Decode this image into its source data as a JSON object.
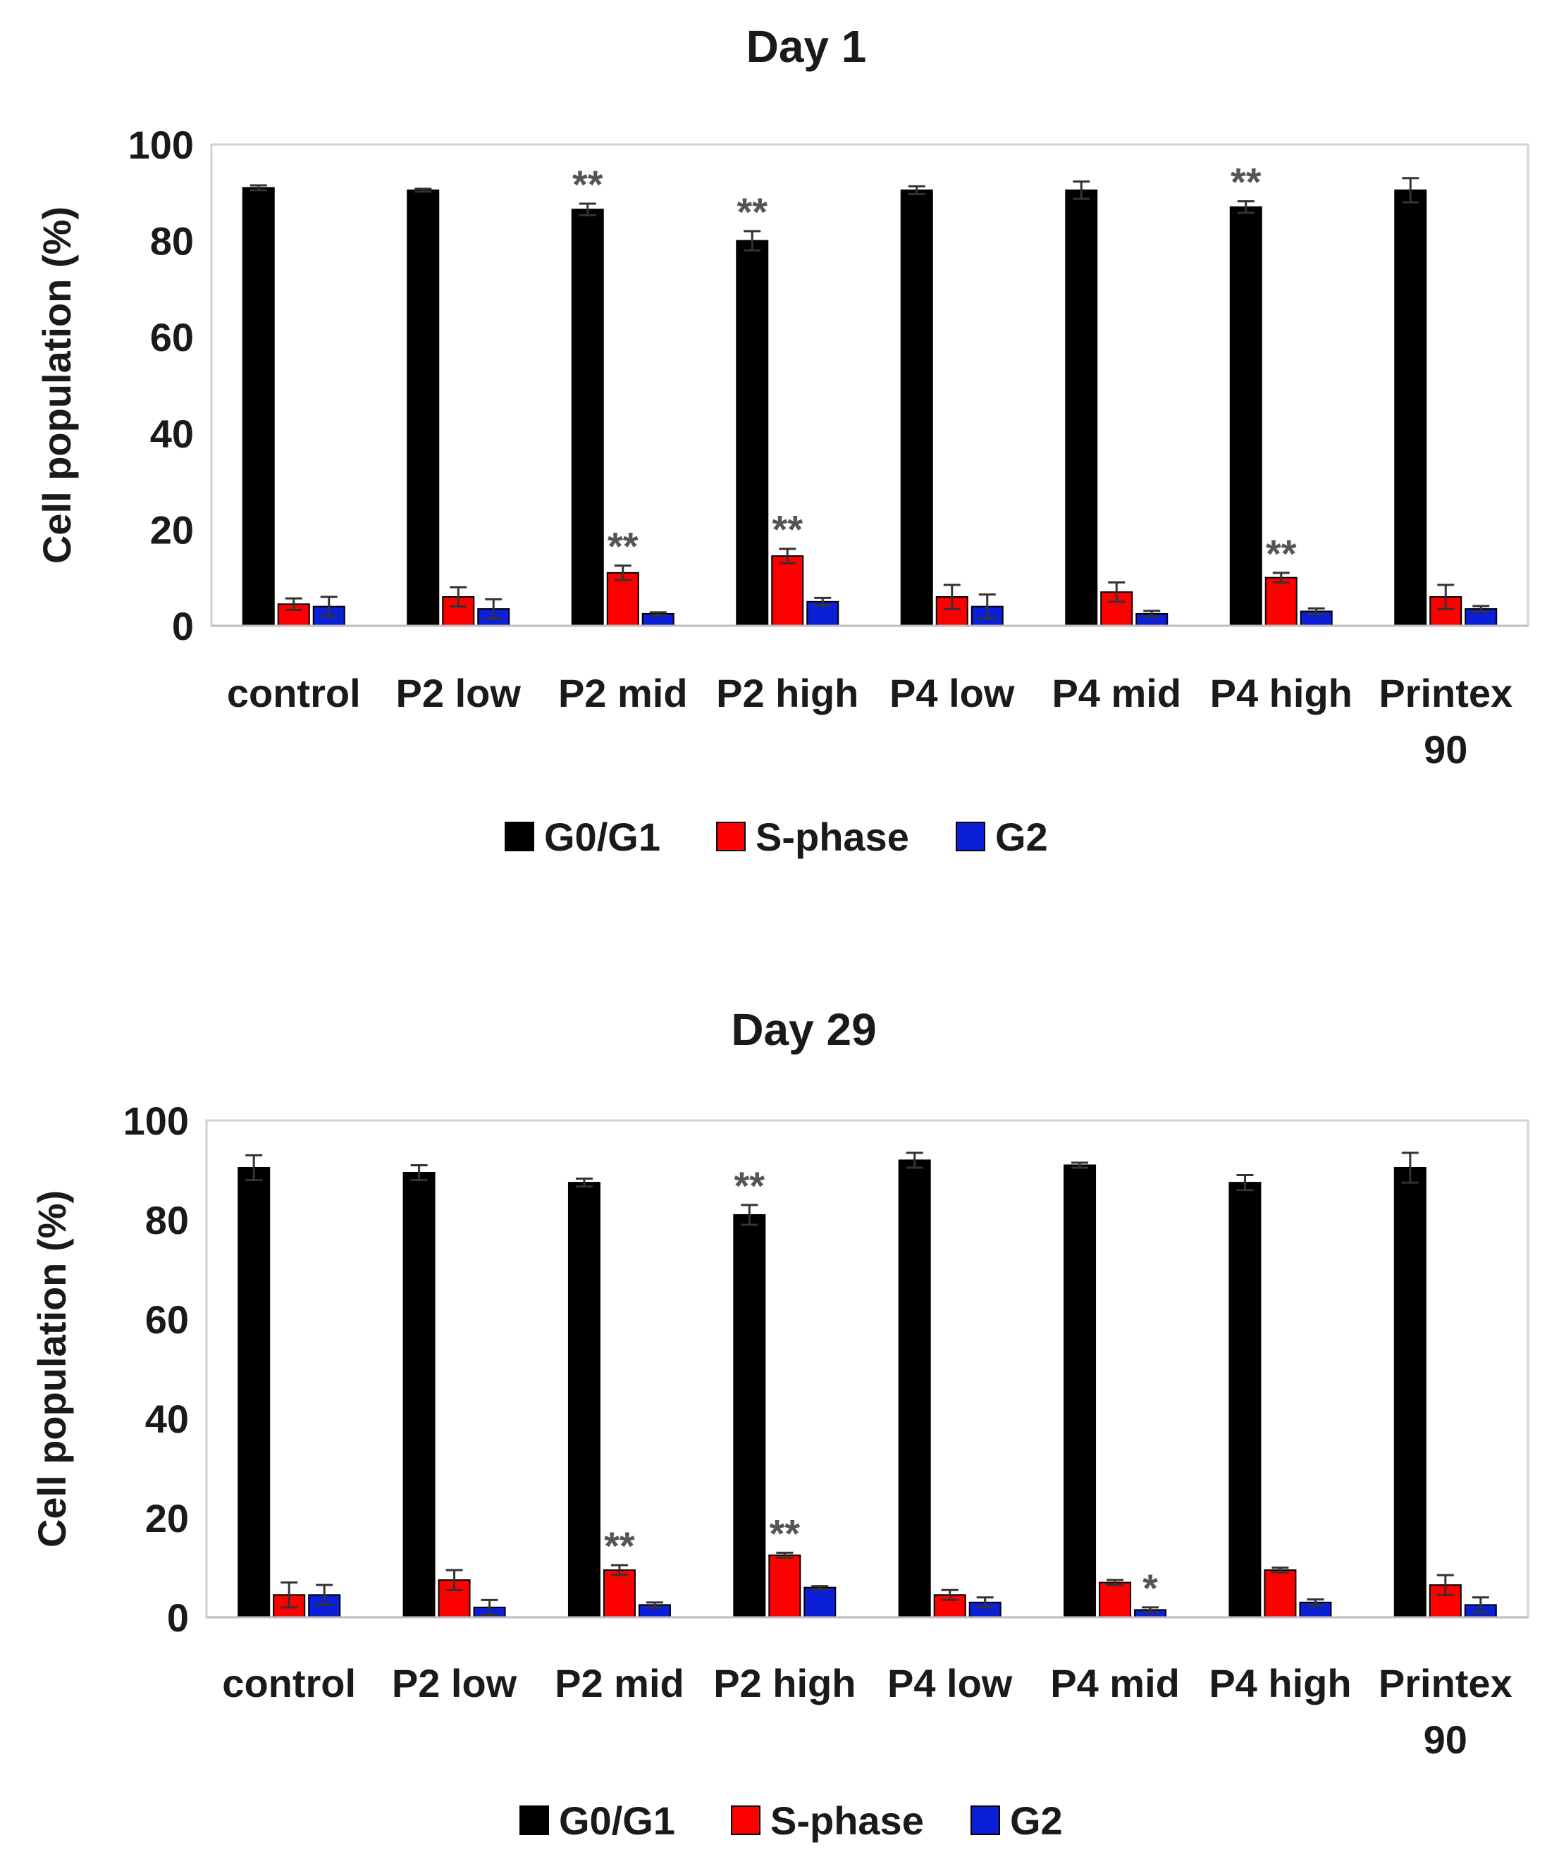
{
  "chart_data": [
    {
      "type": "bar",
      "title": "Day 1",
      "xlabel": "",
      "ylabel": "Cell population (%)",
      "ylim": [
        0,
        100
      ],
      "yticks": [
        "0",
        "20",
        "40",
        "60",
        "80",
        "100"
      ],
      "grid": false,
      "legend_position": "bottom",
      "categories": [
        [
          "control"
        ],
        [
          "P2 low"
        ],
        [
          "P2 mid"
        ],
        [
          "P2 high"
        ],
        [
          "P4 low"
        ],
        [
          "P4 mid"
        ],
        [
          "P4 high"
        ],
        [
          "Printex",
          "90"
        ]
      ],
      "series": [
        {
          "name": "G0/G1",
          "color": "#000000",
          "values": [
            91,
            90.5,
            86.5,
            80,
            90.5,
            90.5,
            87,
            90.5
          ],
          "errors": [
            0.5,
            0.3,
            1.2,
            2.0,
            0.8,
            1.8,
            1.2,
            2.5
          ],
          "significance": [
            "",
            "",
            "**",
            "**",
            "",
            "",
            "**",
            ""
          ]
        },
        {
          "name": "S-phase",
          "color": "#ff0000",
          "values": [
            4.5,
            6,
            11,
            14.5,
            6,
            7,
            10,
            6
          ],
          "errors": [
            1.2,
            2.0,
            1.5,
            1.5,
            2.5,
            2.0,
            1.0,
            2.5
          ],
          "significance": [
            "",
            "",
            "**",
            "**",
            "",
            "",
            "**",
            ""
          ]
        },
        {
          "name": "G2",
          "color": "#0a1fd6",
          "values": [
            4,
            3.5,
            2.5,
            5,
            4,
            2.5,
            3,
            3.5
          ],
          "errors": [
            2.0,
            2.0,
            0.3,
            0.8,
            2.5,
            0.6,
            0.6,
            0.6
          ],
          "significance": [
            "",
            "",
            "",
            "",
            "",
            "",
            "",
            ""
          ]
        }
      ]
    },
    {
      "type": "bar",
      "title": "Day 29",
      "xlabel": "",
      "ylabel": "Cell population (%)",
      "ylim": [
        0,
        100
      ],
      "yticks": [
        "0",
        "20",
        "40",
        "60",
        "80",
        "100"
      ],
      "grid": false,
      "legend_position": "bottom",
      "categories": [
        [
          "control"
        ],
        [
          "P2 low"
        ],
        [
          "P2 mid"
        ],
        [
          "P2 high"
        ],
        [
          "P4 low"
        ],
        [
          "P4 mid"
        ],
        [
          "P4 high"
        ],
        [
          "Printex",
          "90"
        ]
      ],
      "series": [
        {
          "name": "G0/G1",
          "color": "#000000",
          "values": [
            90.5,
            89.5,
            87.5,
            81,
            92,
            91,
            87.5,
            90.5
          ],
          "errors": [
            2.5,
            1.5,
            0.8,
            2.0,
            1.5,
            0.5,
            1.5,
            3.0
          ],
          "significance": [
            "",
            "",
            "",
            "**",
            "",
            "",
            "",
            ""
          ]
        },
        {
          "name": "S-phase",
          "color": "#ff0000",
          "values": [
            4.5,
            7.5,
            9.5,
            12.5,
            4.5,
            7,
            9.5,
            6.5
          ],
          "errors": [
            2.5,
            2.0,
            1.0,
            0.5,
            1.0,
            0.5,
            0.5,
            2.0
          ],
          "significance": [
            "",
            "",
            "**",
            "**",
            "",
            "",
            "",
            ""
          ]
        },
        {
          "name": "G2",
          "color": "#0a1fd6",
          "values": [
            4.5,
            2,
            2.5,
            6,
            3,
            1.5,
            3,
            2.5
          ],
          "errors": [
            2.0,
            1.5,
            0.5,
            0.3,
            1.0,
            0.5,
            0.6,
            1.5
          ],
          "significance": [
            "",
            "",
            "",
            "",
            "",
            "*",
            "",
            ""
          ]
        }
      ]
    }
  ]
}
